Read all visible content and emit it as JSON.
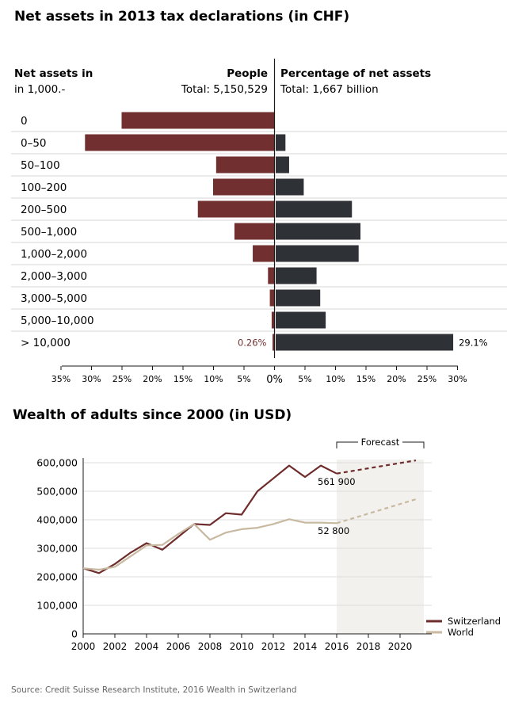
{
  "colors": {
    "people": "#722f2f",
    "assets": "#2e3135",
    "switzerland": "#6e2c2c",
    "world": "#c8b9a1",
    "forecast_bg": "#f3f1ee",
    "grid": "#dddddd"
  },
  "source": "Source: Credit Suisse Research Institute, 2016 Wealth in Switzerland",
  "chart_data": [
    {
      "type": "bar",
      "title": "Net assets in 2013 tax declarations (in CHF)",
      "category_header": [
        "Net assets in",
        "in 1,000.-"
      ],
      "left_header": {
        "label": "People",
        "total": "Total: 5,150,529"
      },
      "right_header": {
        "label": "Percentage of net assets",
        "total": "Total: 1,667 billion"
      },
      "categories": [
        "0",
        "0–50",
        "50–100",
        "100–200",
        "200–500",
        "500–1,000",
        "1,000–2,000",
        "2,000–3,000",
        "3,000–5,000",
        "5,000–10,000",
        "> 10,000"
      ],
      "series": [
        {
          "name": "People",
          "values": [
            25.0,
            31.0,
            9.5,
            10.0,
            12.5,
            6.5,
            3.5,
            1.0,
            0.7,
            0.4,
            0.26
          ]
        },
        {
          "name": "Percentage of net assets",
          "values": [
            0.0,
            1.6,
            2.2,
            4.6,
            12.5,
            13.9,
            13.6,
            6.7,
            7.3,
            8.2,
            29.1
          ]
        }
      ],
      "data_labels": {
        "left_last": "0.26%",
        "right_last": "29.1%"
      },
      "left_ticks": [
        "35%",
        "30%",
        "25%",
        "20%",
        "15%",
        "10%",
        "5%"
      ],
      "center_tick": "0%",
      "right_ticks": [
        "5%",
        "10%",
        "15%",
        "20%",
        "25%",
        "30%"
      ],
      "xlim_left": [
        0,
        35
      ],
      "xlim_right": [
        0,
        30
      ]
    },
    {
      "type": "line",
      "title": "Wealth of adults since 2000 (in USD)",
      "x": [
        2000,
        2001,
        2002,
        2003,
        2004,
        2005,
        2006,
        2007,
        2008,
        2009,
        2010,
        2011,
        2012,
        2013,
        2014,
        2015,
        2016,
        2021
      ],
      "series": [
        {
          "name": "Switzerland",
          "values": [
            230000,
            213000,
            245000,
            285000,
            318000,
            295000,
            340000,
            385000,
            382000,
            423000,
            418000,
            500000,
            545000,
            590000,
            550000,
            590000,
            561900,
            608000
          ]
        },
        {
          "name": "World",
          "values": [
            230000,
            225000,
            235000,
            272000,
            310000,
            312000,
            350000,
            385000,
            330000,
            355000,
            367000,
            372000,
            385000,
            402000,
            390000,
            390000,
            388000,
            472000
          ]
        }
      ],
      "forecast_start": 2016,
      "forecast_end": 2021.5,
      "forecast_label": "Forecast",
      "annotations": [
        "561 900",
        "52 800"
      ],
      "yticks": [
        "0",
        "100,000",
        "200,000",
        "300,000",
        "400,000",
        "500,000",
        "600,000"
      ],
      "xticks": [
        "2000",
        "2002",
        "2004",
        "2006",
        "2008",
        "2010",
        "2012",
        "2014",
        "2016",
        "2018",
        "2020"
      ],
      "ylim": [
        0,
        600000
      ],
      "xlim": [
        2000,
        2022
      ],
      "legend": "bottom-right"
    }
  ]
}
